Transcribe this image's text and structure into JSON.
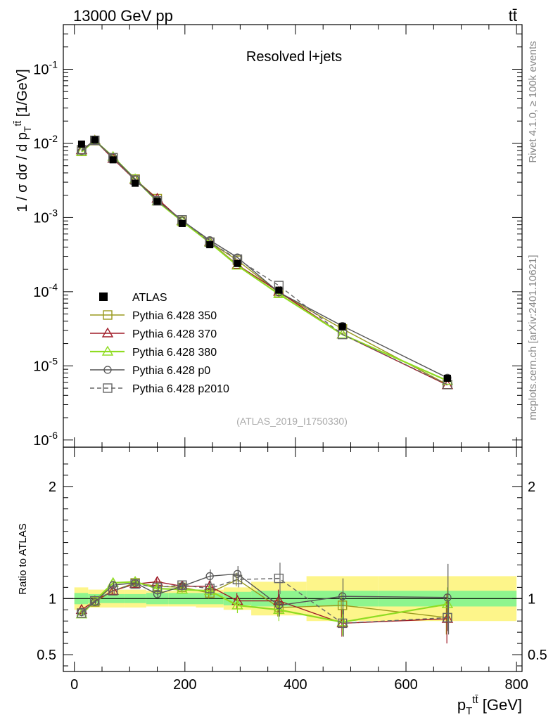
{
  "header": {
    "energy_label": "13000 GeV pp",
    "process_label": "tt̄",
    "rivet_label": "Rivet 4.1.0, ≥ 100k events",
    "mcplots_label": "mcplots.cern.ch [arXiv:2401.10621]"
  },
  "chart_data": [
    {
      "type": "line",
      "title": "Resolved l+jets",
      "analysis_id": "(ATLAS_2019_I1750330)",
      "xlabel": "p_T^{tt̄} [GeV]",
      "ylabel": "1 / σ dσ / d p_T^{tt̄} [1/GeV]",
      "yscale": "log",
      "xlim": [
        -20,
        810
      ],
      "ylim": [
        8e-07,
        0.4
      ],
      "y_tick_labels": [
        "10^{-6}",
        "10^{-5}",
        "10^{-4}",
        "10^{-3}",
        "10^{-2}",
        "10^{-1}"
      ],
      "x": [
        13,
        37,
        70,
        110,
        150,
        195,
        245,
        295,
        370,
        485,
        675
      ],
      "reference": {
        "name": "ATLAS",
        "values": [
          0.0098,
          0.0112,
          0.006,
          0.0029,
          0.00165,
          0.00083,
          0.00043,
          0.00024,
          0.000105,
          3.4e-05,
          6.8e-06
        ]
      },
      "series": [
        {
          "name": "Pythia 6.428 350",
          "values": [
            0.0078,
            0.0109,
            0.0064,
            0.0033,
            0.0018,
            0.00089,
            0.000465,
            0.000265,
            9.7e-05,
            3.15e-05,
            5.6e-06
          ]
        },
        {
          "name": "Pythia 6.428 370",
          "values": [
            0.0081,
            0.011,
            0.0062,
            0.0032,
            0.0018,
            0.0009,
            0.00047,
            0.00023,
            0.0001,
            2.65e-05,
            5.5e-06
          ]
        },
        {
          "name": "Pythia 6.428 380",
          "values": [
            0.0077,
            0.0109,
            0.0066,
            0.0033,
            0.00165,
            0.00089,
            0.00046,
            0.000225,
            9.3e-05,
            2.65e-05,
            6.3e-06
          ]
        },
        {
          "name": "Pythia 6.428 p0",
          "values": [
            0.0079,
            0.011,
            0.0065,
            0.0033,
            0.0017,
            0.00091,
            0.000495,
            0.00029,
            9.8e-05,
            3.45e-05,
            6.9e-06
          ]
        },
        {
          "name": "Pythia 6.428 p2010",
          "values": [
            0.0082,
            0.011,
            0.0064,
            0.0032,
            0.00168,
            0.00093,
            0.000465,
            0.000275,
            0.000121,
            2.65e-05,
            5.6e-06
          ]
        }
      ]
    },
    {
      "type": "line",
      "xlabel": "p_T^{tt̄} [GeV]",
      "ylabel": "Ratio to ATLAS",
      "xlim": [
        -20,
        810
      ],
      "ylim": [
        0.35,
        2.35
      ],
      "x_tick_labels": [
        "0",
        "200",
        "400",
        "600",
        "800"
      ],
      "y_tick_labels": [
        "0.5",
        "1",
        "2"
      ],
      "x": [
        13,
        37,
        70,
        110,
        150,
        195,
        245,
        295,
        370,
        485,
        675
      ],
      "bin_edges": [
        0,
        25,
        50,
        90,
        130,
        170,
        220,
        270,
        320,
        420,
        550,
        800
      ],
      "band_inner": [
        0.05,
        0.04,
        0.04,
        0.04,
        0.05,
        0.05,
        0.05,
        0.06,
        0.07,
        0.07,
        0.07
      ],
      "band_outer": [
        0.1,
        0.08,
        0.08,
        0.08,
        0.07,
        0.07,
        0.08,
        0.1,
        0.15,
        0.2,
        0.2
      ],
      "series": [
        {
          "name": "Pythia 6.428 350",
          "values": [
            0.87,
            0.97,
            1.07,
            1.14,
            1.11,
            1.1,
            1.05,
            1.17,
            0.92,
            0.94,
            0.83
          ]
        },
        {
          "name": "Pythia 6.428 370",
          "values": [
            0.9,
            0.98,
            1.07,
            1.13,
            1.15,
            1.11,
            1.11,
            0.98,
            0.98,
            0.78,
            0.82
          ]
        },
        {
          "name": "Pythia 6.428 380",
          "values": [
            0.86,
            0.98,
            1.14,
            1.15,
            1.09,
            1.08,
            1.07,
            0.94,
            0.9,
            0.79,
            0.95
          ]
        },
        {
          "name": "Pythia 6.428 p0",
          "values": [
            0.88,
            0.97,
            1.12,
            1.14,
            1.04,
            1.11,
            1.2,
            1.22,
            0.94,
            1.02,
            1.01
          ]
        },
        {
          "name": "Pythia 6.428 p2010",
          "values": [
            0.87,
            0.98,
            1.07,
            1.13,
            1.1,
            1.12,
            1.09,
            1.17,
            1.18,
            0.78,
            0.83
          ]
        }
      ],
      "errors": [
        [
          0.02,
          0.02,
          0.03,
          0.03,
          0.03,
          0.03,
          0.05,
          0.06,
          0.08,
          0.12,
          0.15
        ],
        [
          0.02,
          0.02,
          0.03,
          0.03,
          0.03,
          0.03,
          0.05,
          0.07,
          0.1,
          0.12,
          0.22
        ],
        [
          0.02,
          0.02,
          0.03,
          0.03,
          0.03,
          0.03,
          0.05,
          0.07,
          0.1,
          0.12,
          0.15
        ],
        [
          0.02,
          0.02,
          0.03,
          0.03,
          0.03,
          0.03,
          0.06,
          0.07,
          0.1,
          0.16,
          0.3
        ],
        [
          0.02,
          0.02,
          0.03,
          0.03,
          0.03,
          0.03,
          0.06,
          0.07,
          0.14,
          0.12,
          0.15
        ]
      ]
    }
  ],
  "style": {
    "colors": [
      "#9a9a1e",
      "#a01c28",
      "#8fdc22",
      "#555555",
      "#666666"
    ],
    "markers": [
      "square",
      "triangle",
      "triangle",
      "circle",
      "square"
    ],
    "dashed": [
      false,
      false,
      false,
      false,
      true
    ],
    "reference_color": "#000000",
    "band_inner_color": "#8ef58e",
    "band_outer_color": "#fdf58a"
  }
}
